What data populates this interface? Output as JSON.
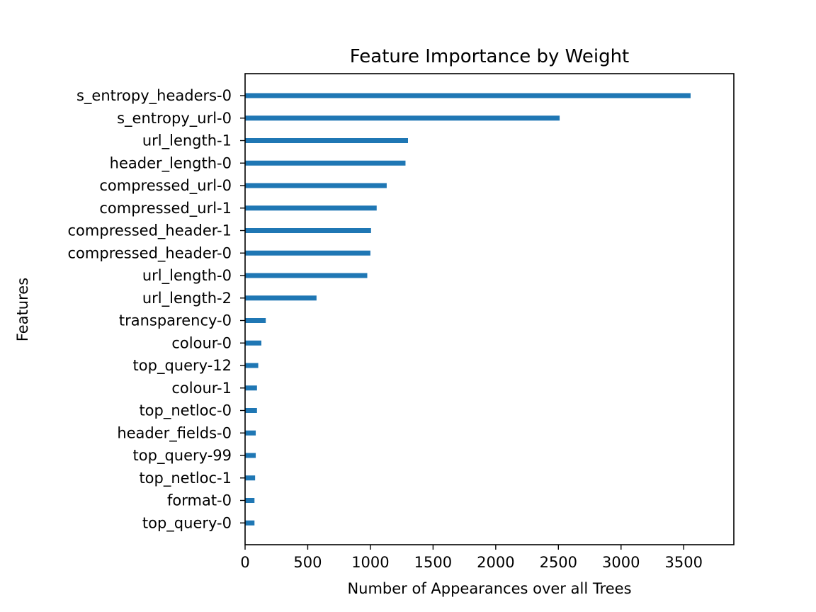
{
  "chart_data": {
    "type": "bar",
    "orientation": "horizontal",
    "title": "Feature Importance by Weight",
    "xlabel": "Number of Appearances over all Trees",
    "ylabel": "Features",
    "categories": [
      "s_entropy_headers-0",
      "s_entropy_url-0",
      "url_length-1",
      "header_length-0",
      "compressed_url-0",
      "compressed_url-1",
      "compressed_header-1",
      "compressed_header-0",
      "url_length-0",
      "url_length-2",
      "transparency-0",
      "colour-0",
      "top_query-12",
      "colour-1",
      "top_netloc-0",
      "header_fields-0",
      "top_query-99",
      "top_netloc-1",
      "format-0",
      "top_query-0"
    ],
    "values": [
      3555,
      2510,
      1300,
      1280,
      1130,
      1050,
      1005,
      1000,
      975,
      570,
      165,
      130,
      105,
      95,
      95,
      85,
      85,
      80,
      75,
      75
    ],
    "xlim": [
      0,
      3900
    ],
    "xticks": [
      0,
      500,
      1000,
      1500,
      2000,
      2500,
      3000,
      3500
    ],
    "grid": false,
    "legend": "none",
    "bar_color": "#1f77b4"
  }
}
